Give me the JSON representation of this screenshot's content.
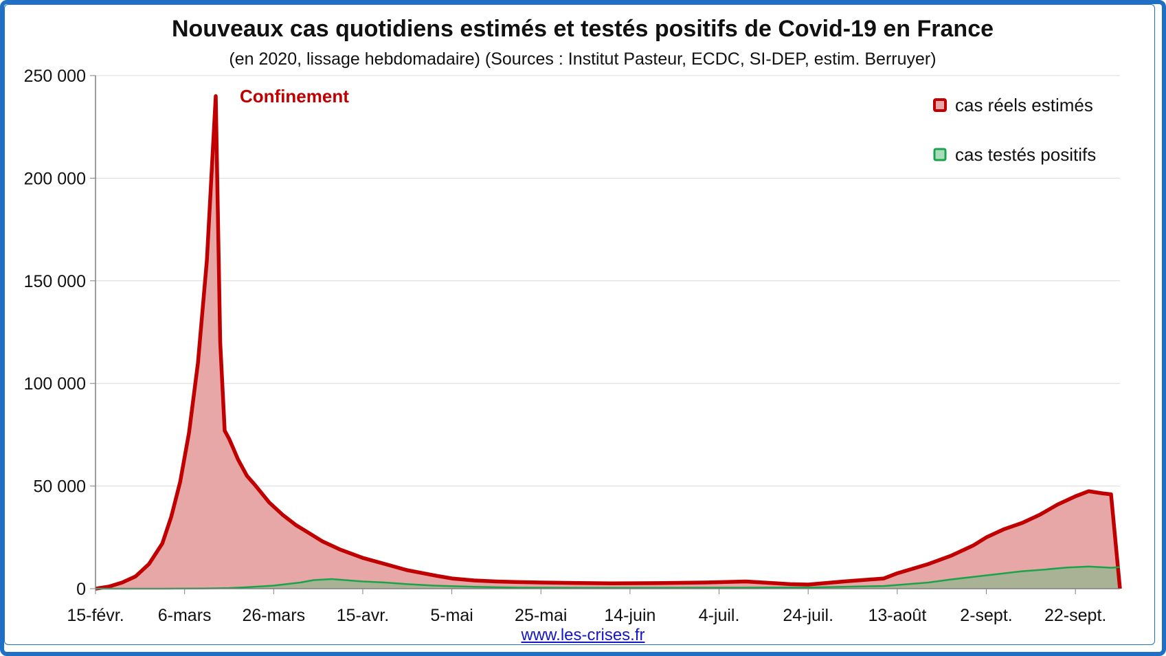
{
  "chart_data": {
    "type": "area",
    "title": "Nouveaux cas quotidiens estimés et testés positifs de Covid-19 en France",
    "subtitle": "(en 2020, lissage hebdomadaire) (Sources : Institut Pasteur, ECDC, SI-DEP, estim. Berruyer)",
    "xlabel": "",
    "ylabel": "",
    "ylim": [
      0,
      250000
    ],
    "y_ticks": [
      0,
      50000,
      100000,
      150000,
      200000,
      250000
    ],
    "y_tick_labels": [
      "0",
      "50 000",
      "100 000",
      "150 000",
      "200 000",
      "250 000"
    ],
    "x_tick_labels": [
      "15-févr.",
      "6-mars",
      "26-mars",
      "15-avr.",
      "5-mai",
      "25-mai",
      "14-juin",
      "4-juil.",
      "24-juil.",
      "13-août",
      "2-sept.",
      "22-sept."
    ],
    "grid": true,
    "legend_position": "top-right",
    "annotations": [
      {
        "text": "Confinement",
        "x": "16-mars"
      }
    ],
    "series": [
      {
        "name": "cas réels estimés",
        "color": "#c00000",
        "fill": "#e8a7a7",
        "x": [
          "15-févr.",
          "18-févr.",
          "21-févr.",
          "24-févr.",
          "27-févr.",
          "1-mars",
          "3-mars",
          "5-mars",
          "7-mars",
          "9-mars",
          "11-mars",
          "13-mars",
          "14-mars",
          "15-mars",
          "16-mars",
          "17-mars",
          "18-mars",
          "20-mars",
          "22-mars",
          "25-mars",
          "28-mars",
          "31-mars",
          "3-avr.",
          "6-avr.",
          "10-avr.",
          "15-avr.",
          "20-avr.",
          "25-avr.",
          "1-mai",
          "5-mai",
          "10-mai",
          "15-mai",
          "20-mai",
          "25-mai",
          "1-juin",
          "10-juin",
          "20-juin",
          "1-juil.",
          "10-juil.",
          "20-juil.",
          "24-juil.",
          "1-août",
          "10-août",
          "13-août",
          "20-août",
          "25-août",
          "30-août",
          "2-sept.",
          "6-sept.",
          "10-sept.",
          "14-sept.",
          "18-sept.",
          "22-sept.",
          "25-sept.",
          "28-sept.",
          "30-sept.",
          "2-oct."
        ],
        "values": [
          0,
          1000,
          3000,
          6000,
          12000,
          22000,
          35000,
          52000,
          76000,
          110000,
          160000,
          240000,
          120000,
          77000,
          73000,
          68000,
          63000,
          55000,
          50000,
          42000,
          36000,
          31000,
          27000,
          23000,
          19000,
          15000,
          12000,
          9000,
          6500,
          5000,
          4000,
          3500,
          3200,
          3000,
          2800,
          2600,
          2700,
          3000,
          3500,
          2200,
          2000,
          3500,
          5000,
          7500,
          12000,
          16000,
          21000,
          25000,
          29000,
          32000,
          36000,
          41000,
          45000,
          47500,
          46500,
          46000,
          0
        ]
      },
      {
        "name": "cas testés positifs",
        "color": "#1aa34a",
        "fill": "#9fb492",
        "x": [
          "15-févr.",
          "1-mars",
          "10-mars",
          "16-mars",
          "20-mars",
          "26-mars",
          "1-avr.",
          "4-avr.",
          "8-avr.",
          "15-avr.",
          "20-avr.",
          "25-avr.",
          "1-mai",
          "10-mai",
          "20-mai",
          "1-juin",
          "20-juin",
          "10-juil.",
          "24-juil.",
          "1-août",
          "10-août",
          "13-août",
          "20-août",
          "25-août",
          "2-sept.",
          "6-sept.",
          "10-sept.",
          "15-sept.",
          "20-sept.",
          "25-sept.",
          "30-sept.",
          "2-oct."
        ],
        "values": [
          0,
          0,
          100,
          300,
          700,
          1500,
          3000,
          4200,
          4700,
          3500,
          3000,
          2200,
          1500,
          900,
          500,
          400,
          450,
          500,
          600,
          900,
          1300,
          1800,
          3000,
          4500,
          6500,
          7500,
          8500,
          9300,
          10300,
          10800,
          10200,
          10500
        ]
      }
    ]
  },
  "footer": {
    "link": "www.les-crises.fr"
  }
}
